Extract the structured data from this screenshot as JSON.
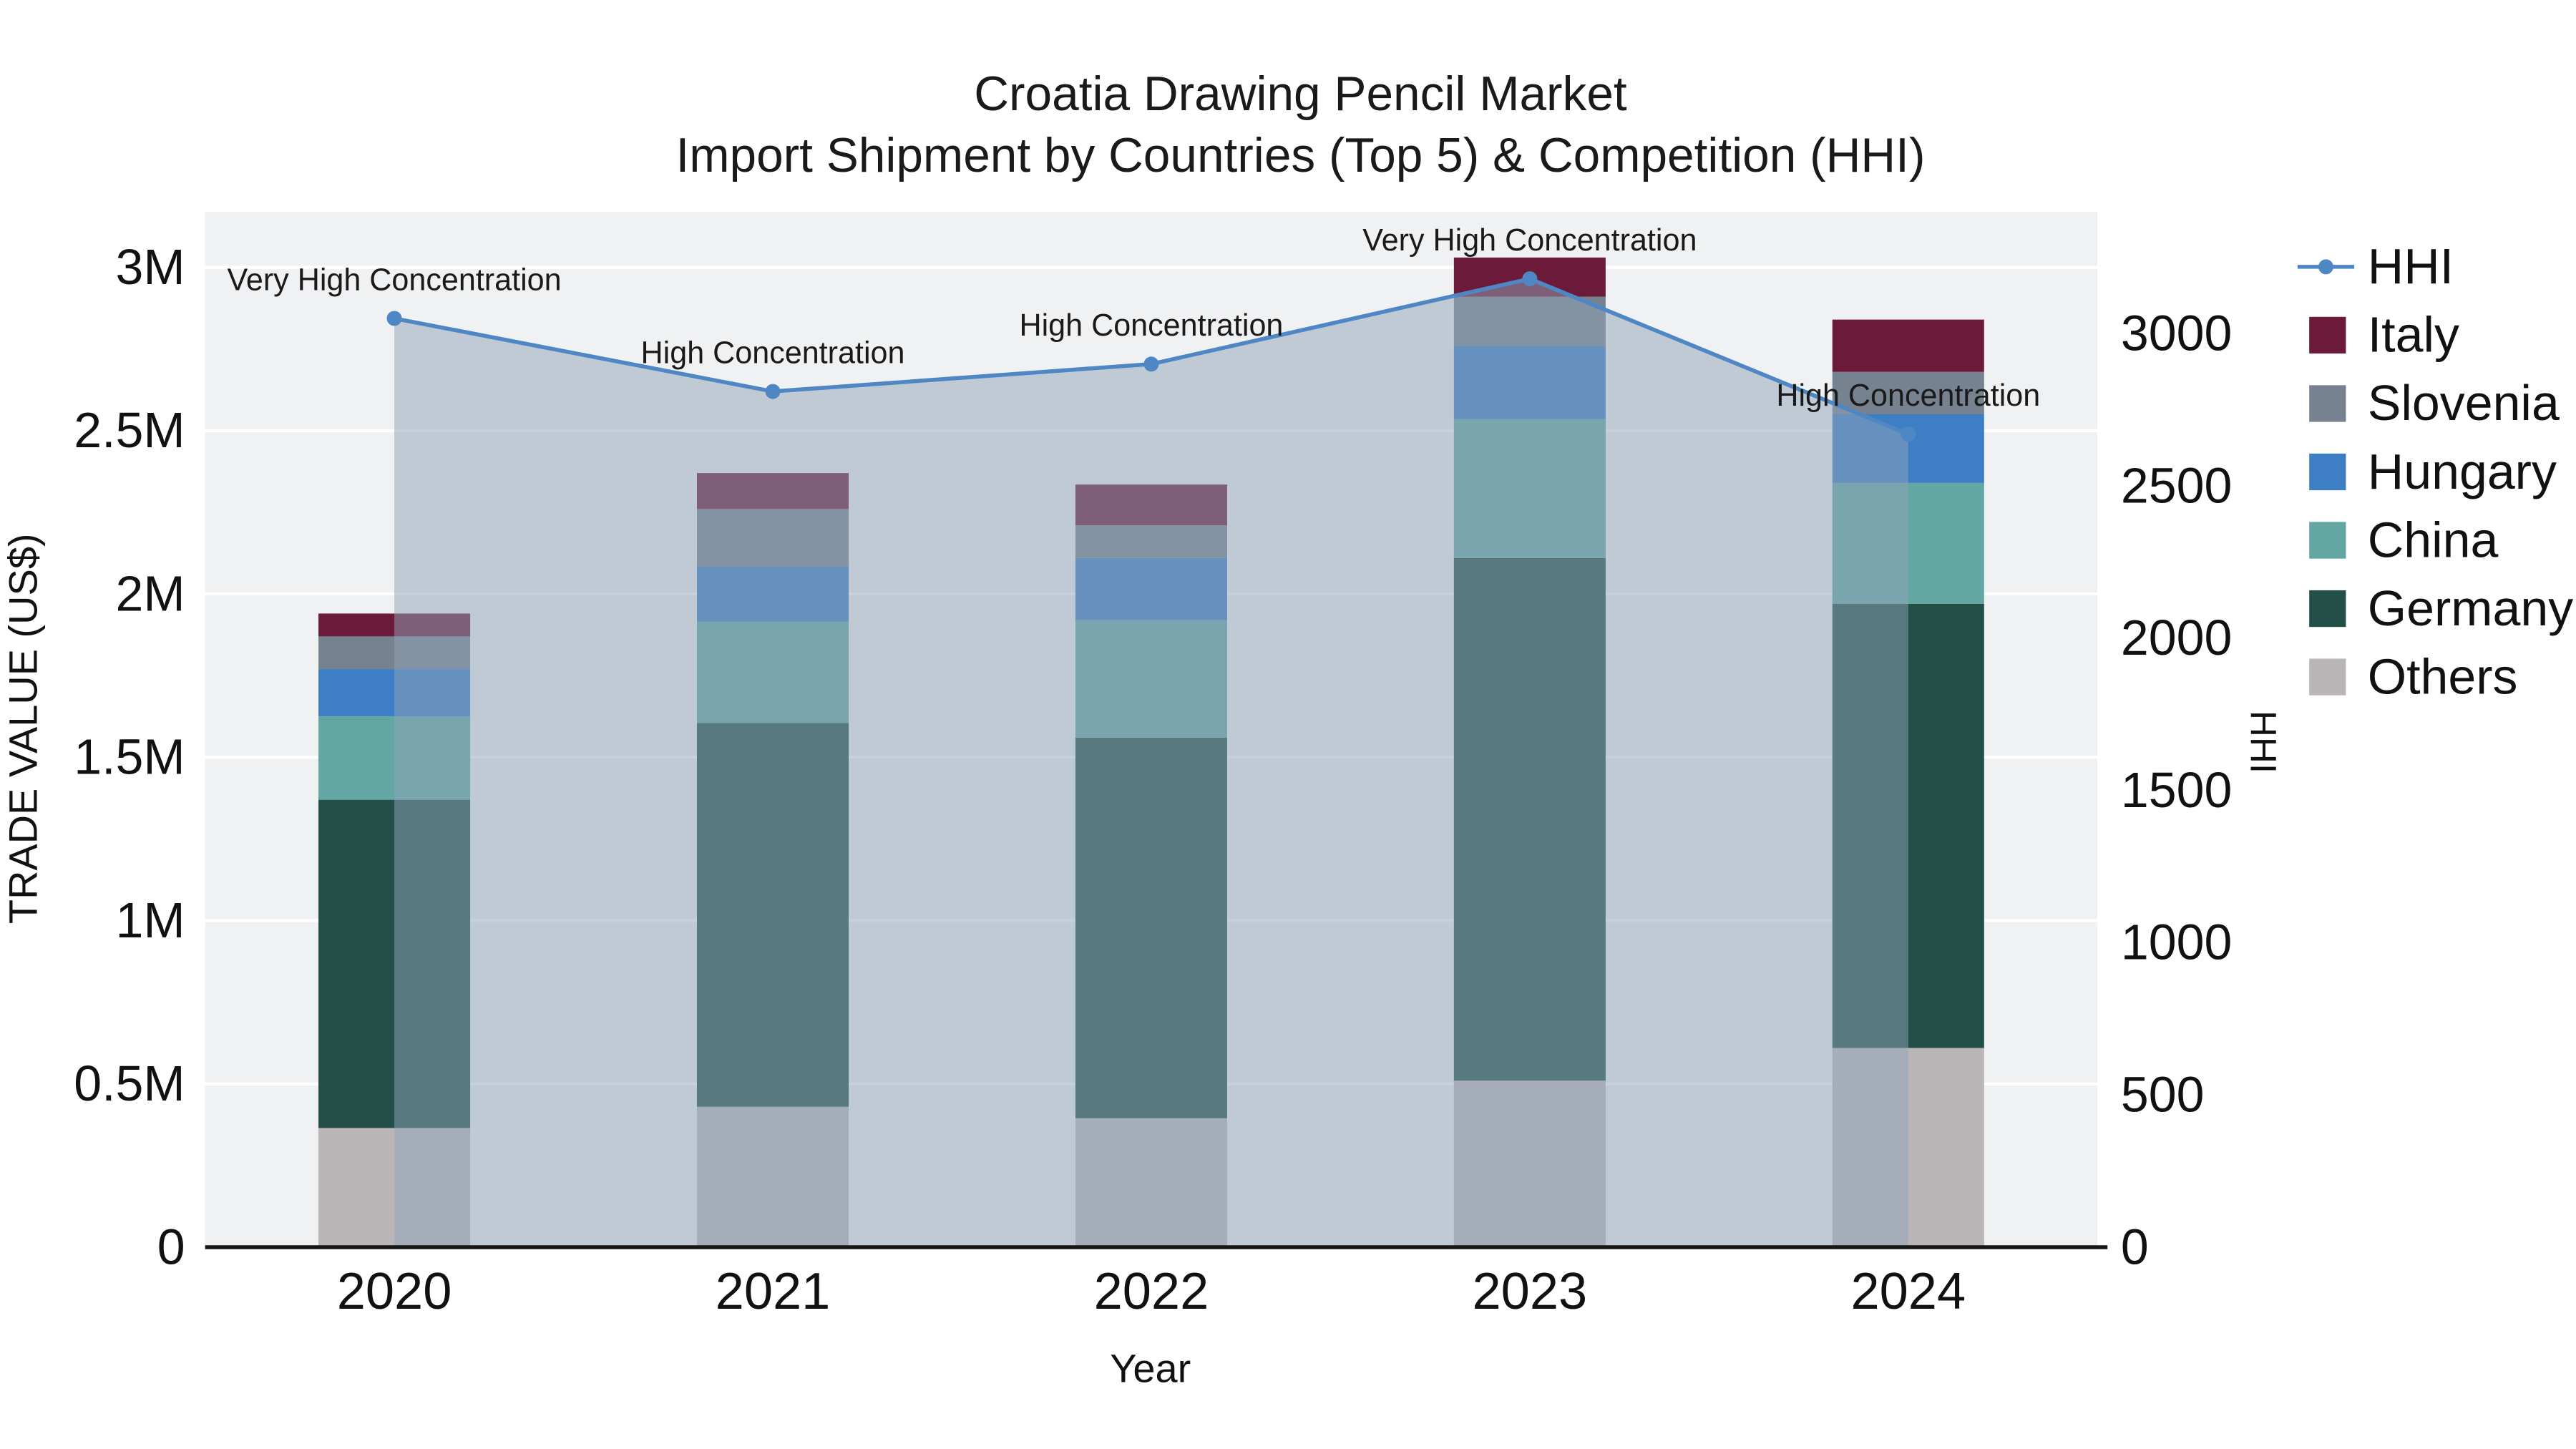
{
  "chart_data": {
    "type": "bar",
    "variant": "stacked-bars-with-line-overlay-dual-axis",
    "title_line1": "Croatia Drawing Pencil Market",
    "title_line2": "Import Shipment by Countries (Top 5) & Competition (HHI)",
    "xlabel": "Year",
    "categories": [
      "2020",
      "2021",
      "2022",
      "2023",
      "2024"
    ],
    "stack_order": "bottom-to-top",
    "bar_stack": [
      {
        "name": "Others",
        "color": "#bab6b8",
        "values": [
          365000,
          430000,
          395000,
          510000,
          610000
        ]
      },
      {
        "name": "Germany",
        "color": "#234f48",
        "values": [
          1005000,
          1175000,
          1165000,
          1600000,
          1360000
        ]
      },
      {
        "name": "China",
        "color": "#63a6a4",
        "values": [
          255000,
          310000,
          360000,
          425000,
          370000
        ]
      },
      {
        "name": "Hungary",
        "color": "#3d7ec4",
        "values": [
          145000,
          170000,
          190000,
          225000,
          210000
        ]
      },
      {
        "name": "Slovenia",
        "color": "#76828f",
        "values": [
          100000,
          175000,
          100000,
          150000,
          130000
        ]
      },
      {
        "name": "Italy",
        "color": "#6b1b39",
        "values": [
          70000,
          110000,
          125000,
          120000,
          160000
        ]
      }
    ],
    "line": {
      "name": "HHI",
      "color": "#4f87c5",
      "fill_color": "rgba(143,163,184,0.5)",
      "values": [
        3050,
        2810,
        2900,
        3180,
        2670
      ]
    },
    "annotations": [
      "Very High Concentration",
      "High Concentration",
      "High Concentration",
      "Very High Concentration",
      "High Concentration"
    ],
    "axes": {
      "left": {
        "label": "TRADE VALUE (US$)",
        "tick_labels": [
          "0",
          "0.5M",
          "1M",
          "1.5M",
          "2M",
          "2.5M",
          "3M"
        ],
        "tick_values": [
          0,
          500000,
          1000000,
          1500000,
          2000000,
          2500000,
          3000000
        ],
        "max": 3170000
      },
      "right": {
        "label": "HHI",
        "tick_labels": [
          "0",
          "500",
          "1000",
          "1500",
          "2000",
          "2500",
          "3000"
        ],
        "tick_values": [
          0,
          500,
          1000,
          1500,
          2000,
          2500,
          3000
        ],
        "max": 3400
      }
    },
    "legend": [
      {
        "label": "HHI",
        "marker": "line",
        "color": "#4f87c5"
      },
      {
        "label": "Italy",
        "marker": "square",
        "color": "#6b1b39"
      },
      {
        "label": "Slovenia",
        "marker": "square",
        "color": "#76828f"
      },
      {
        "label": "Hungary",
        "marker": "square",
        "color": "#3d7ec4"
      },
      {
        "label": "China",
        "marker": "square",
        "color": "#63a6a4"
      },
      {
        "label": "Germany",
        "marker": "square",
        "color": "#234f48"
      },
      {
        "label": "Others",
        "marker": "square",
        "color": "#bab6b8"
      }
    ],
    "colors": {
      "paper_bg": "#ffffff",
      "plot_bg": "#f0f1f3",
      "grid": "#ffffff",
      "axis_line": "#161616",
      "text": "#111111"
    }
  }
}
